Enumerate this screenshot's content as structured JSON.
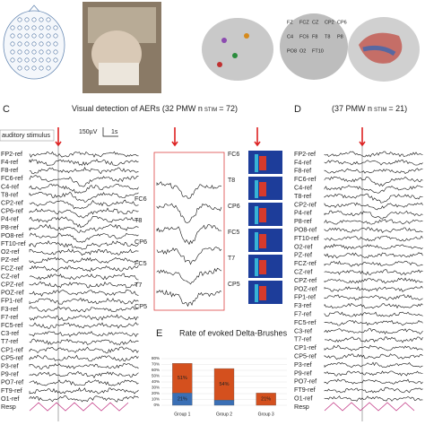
{
  "panel_c": {
    "label": "C",
    "title": "Visual detection of AERs (32 PMW n",
    "title_sub": "STIM",
    "title_end": "= 72)",
    "stimulus": "auditory stimulus",
    "scale_v": "150µV",
    "scale_t": "1s",
    "channels": [
      "FP2-ref",
      "F4-ref",
      "F8-ref",
      "FC6-ref",
      "C4-ref",
      "T8-ref",
      "CP2-ref",
      "CP6-ref",
      "P4-ref",
      "P8-ref",
      "PO8-ref",
      "FT10-ref",
      "O2-ref",
      "PZ-ref",
      "FCZ-ref",
      "CZ-ref",
      "CPZ-ref",
      "POZ-ref",
      "FP1-ref",
      "F3-ref",
      "F7-ref",
      "FC5-ref",
      "C3-ref",
      "T7-ref",
      "CP1-ref",
      "CP5-ref",
      "P3-ref",
      "P9-ref",
      "PO7-ref",
      "FT9-ref",
      "O1-ref",
      "Resp"
    ]
  },
  "zoom": {
    "channels": [
      "FC6",
      "T8",
      "CP6",
      "FC5",
      "T7",
      "CP5"
    ],
    "spectrogram_channels": [
      "FC6",
      "T8",
      "CP6",
      "FC5",
      "T7",
      "CP5"
    ]
  },
  "panel_d": {
    "label": "D",
    "title": "(37 PMW n",
    "title_sub": "STIM",
    "title_end": "= 21)",
    "channels": [
      "FP2-ref",
      "F4-ref",
      "F8-ref",
      "FC6-ref",
      "C4-ref",
      "T8-ref",
      "CP2-ref",
      "P4-ref",
      "P8-ref",
      "PO8-ref",
      "FT10-ref",
      "O2-ref",
      "PZ-ref",
      "FCZ-ref",
      "CZ-ref",
      "CPZ-ref",
      "POZ-ref",
      "FP1-ref",
      "F3-ref",
      "F7-ref",
      "FC5-ref",
      "C3-ref",
      "T7-ref",
      "CP1-ref",
      "CP5-ref",
      "P3-ref",
      "P9-ref",
      "PO7-ref",
      "FT9-ref",
      "O1-ref",
      "Resp"
    ]
  },
  "head_labels": [
    "FZ",
    "FCZ",
    "CZ",
    "CP2",
    "CP6",
    "C4",
    "FC6",
    "F8",
    "T8",
    "P8",
    "PO8",
    "O2",
    "FT10"
  ],
  "panel_e": {
    "label": "E",
    "chart": {
      "type": "bar",
      "title": "Rate of evoked Delta-Brushes",
      "categories": [
        "Group 1",
        "Group 2",
        "Group 3"
      ],
      "series": [
        {
          "color": "#3a6fb5",
          "values": [
            21,
            9,
            0
          ],
          "value_labels": [
            "21%",
            null,
            null
          ]
        },
        {
          "color": "#d4501e",
          "values": [
            51,
            54,
            21
          ],
          "value_labels": [
            "51%",
            "54%",
            "21%"
          ]
        }
      ],
      "ylim": [
        0,
        80
      ],
      "yticks": [
        {
          "value": 0,
          "label": "0%"
        },
        {
          "value": 10,
          "label": "10%"
        },
        {
          "value": 20,
          "label": "20%"
        },
        {
          "value": 30,
          "label": "30%"
        },
        {
          "value": 40,
          "label": "40%"
        },
        {
          "value": 50,
          "label": "50%"
        },
        {
          "value": 60,
          "label": "60%"
        },
        {
          "value": 70,
          "label": "70%"
        },
        {
          "value": 80,
          "label": "80%"
        }
      ]
    }
  }
}
